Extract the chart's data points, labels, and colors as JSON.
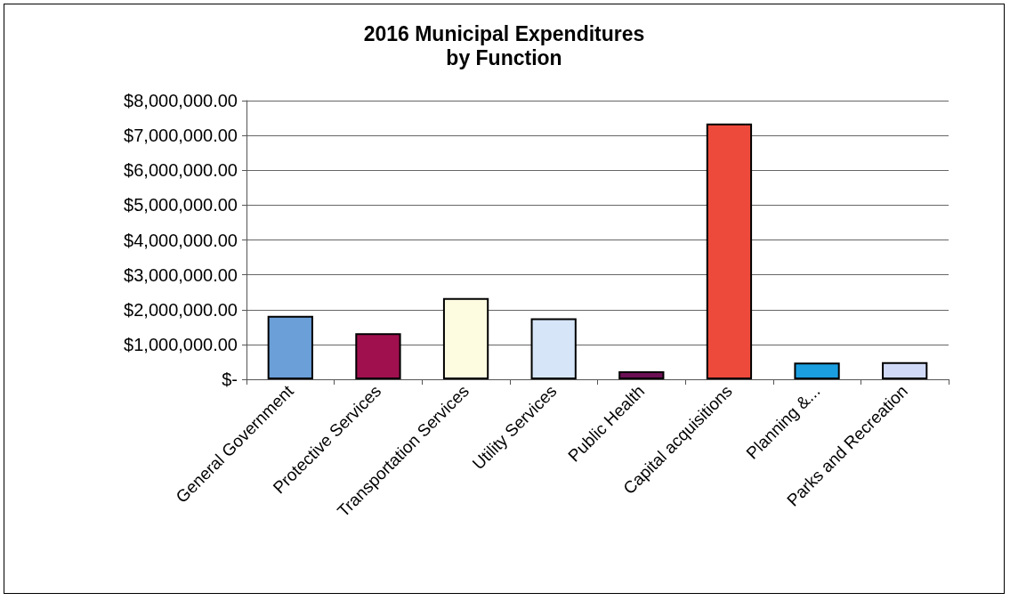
{
  "chart_data": {
    "type": "bar",
    "title": "2016 Municipal Expenditures\nby Function",
    "categories": [
      "General Government",
      "Protective Services",
      "Transportation Services",
      "Utility Services",
      "Public Health",
      "Capital acquisitions",
      "Planning &...",
      "Parks and Recreation"
    ],
    "values": [
      1820000,
      1320000,
      2330000,
      1750000,
      230000,
      7340000,
      480000,
      490000
    ],
    "colors": [
      "#6a9fd8",
      "#a0104f",
      "#fdfbe0",
      "#d6e6f8",
      "#6c1055",
      "#ee4a3c",
      "#1a9ee0",
      "#d0daf6"
    ],
    "ylim": [
      0,
      8000000
    ],
    "yticks": [
      {
        "value": 0,
        "label": "$-"
      },
      {
        "value": 1000000,
        "label": "$1,000,000.00"
      },
      {
        "value": 2000000,
        "label": "$2,000,000.00"
      },
      {
        "value": 3000000,
        "label": "$3,000,000.00"
      },
      {
        "value": 4000000,
        "label": "$4,000,000.00"
      },
      {
        "value": 5000000,
        "label": "$5,000,000.00"
      },
      {
        "value": 6000000,
        "label": "$6,000,000.00"
      },
      {
        "value": 7000000,
        "label": "$7,000,000.00"
      },
      {
        "value": 8000000,
        "label": "$8,000,000.00"
      }
    ],
    "grid": "y"
  }
}
